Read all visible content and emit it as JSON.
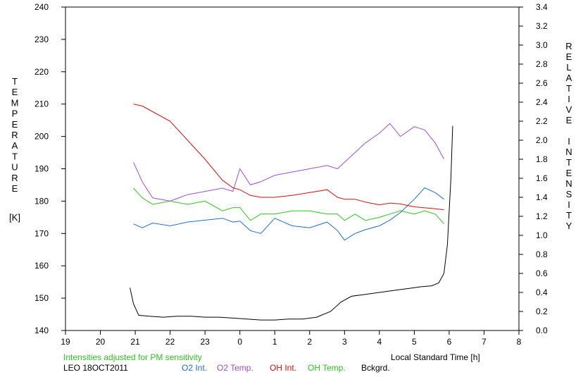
{
  "chart_data": {
    "type": "line",
    "y_left_label": "TEMPERATURE",
    "y_left_unit": "[K]",
    "y_right_label": "RELATIVE INTENSITY",
    "x_label": "Local Standard Time [h]",
    "x_ticks": [
      "19",
      "20",
      "21",
      "22",
      "23",
      "0",
      "1",
      "2",
      "3",
      "4",
      "5",
      "6",
      "7",
      "8"
    ],
    "y_left_ticks": [
      "140",
      "150",
      "160",
      "170",
      "180",
      "190",
      "200",
      "210",
      "220",
      "230",
      "240"
    ],
    "y_right_ticks": [
      "0.0",
      "0.2",
      "0.4",
      "0.6",
      "0.8",
      "1.0",
      "1.2",
      "1.4",
      "1.6",
      "1.8",
      "2.0",
      "2.2",
      "2.4",
      "2.6",
      "2.8",
      "3.0",
      "3.2",
      "3.4"
    ],
    "x_range": [
      19,
      32
    ],
    "y_left_range": [
      140,
      240
    ],
    "y_right_range": [
      0,
      3.4
    ],
    "grid": false,
    "series": [
      {
        "name": "O2 Int.",
        "axis": "right",
        "color": "#1f6fd8",
        "x": [
          20.95,
          21.2,
          21.5,
          22.0,
          22.5,
          23.0,
          23.5,
          23.8,
          24.0,
          24.3,
          24.6,
          25.0,
          25.5,
          26.0,
          26.5,
          26.8,
          27.0,
          27.3,
          27.6,
          28.0,
          28.3,
          28.6,
          29.0,
          29.3,
          29.6,
          29.85
        ],
        "y": [
          1.12,
          1.08,
          1.13,
          1.1,
          1.14,
          1.16,
          1.18,
          1.14,
          1.15,
          1.05,
          1.02,
          1.18,
          1.1,
          1.08,
          1.14,
          1.05,
          0.95,
          1.02,
          1.06,
          1.1,
          1.16,
          1.24,
          1.38,
          1.5,
          1.45,
          1.38
        ]
      },
      {
        "name": "O2 Temp.",
        "axis": "left",
        "color": "#a04fd6",
        "x": [
          20.95,
          21.2,
          21.5,
          22.0,
          22.5,
          23.0,
          23.5,
          23.8,
          24.0,
          24.3,
          24.6,
          25.0,
          25.5,
          26.0,
          26.5,
          26.8,
          27.0,
          27.3,
          27.6,
          28.0,
          28.3,
          28.6,
          29.0,
          29.3,
          29.6,
          29.85
        ],
        "y": [
          192,
          186,
          181,
          180,
          182,
          183,
          184,
          183,
          190,
          185,
          186,
          188,
          189,
          190,
          191,
          190,
          192,
          195,
          198,
          201,
          204,
          200,
          203,
          202,
          198,
          193
        ]
      },
      {
        "name": "OH Int.",
        "axis": "right",
        "color": "#d81010",
        "x": [
          20.95,
          21.2,
          21.5,
          22.0,
          22.5,
          23.0,
          23.5,
          23.8,
          24.0,
          24.3,
          24.6,
          25.0,
          25.5,
          26.0,
          26.5,
          26.8,
          27.0,
          27.3,
          27.6,
          28.0,
          28.3,
          28.6,
          29.0,
          29.3,
          29.6,
          29.85
        ],
        "y": [
          2.38,
          2.36,
          2.3,
          2.2,
          2.0,
          1.8,
          1.58,
          1.5,
          1.48,
          1.42,
          1.4,
          1.4,
          1.42,
          1.45,
          1.48,
          1.4,
          1.38,
          1.38,
          1.35,
          1.32,
          1.34,
          1.33,
          1.3,
          1.29,
          1.28,
          1.27
        ]
      },
      {
        "name": "OH Temp.",
        "axis": "left",
        "color": "#2ec41f",
        "x": [
          20.95,
          21.2,
          21.5,
          22.0,
          22.5,
          23.0,
          23.5,
          23.8,
          24.0,
          24.3,
          24.6,
          25.0,
          25.5,
          26.0,
          26.5,
          26.8,
          27.0,
          27.3,
          27.6,
          28.0,
          28.3,
          28.6,
          29.0,
          29.3,
          29.6,
          29.85
        ],
        "y": [
          184,
          181,
          179,
          180,
          179,
          180,
          177,
          178,
          178,
          174,
          176,
          176,
          177,
          177,
          176,
          176,
          174,
          176,
          174,
          175,
          176,
          177,
          176,
          177,
          176,
          173
        ]
      },
      {
        "name": "Bckgrd.",
        "axis": "right",
        "color": "#000000",
        "x": [
          20.85,
          20.95,
          21.1,
          21.4,
          21.8,
          22.2,
          22.6,
          23.0,
          23.4,
          23.8,
          24.2,
          24.6,
          25.0,
          25.4,
          25.8,
          26.2,
          26.6,
          26.9,
          27.2,
          27.6,
          28.0,
          28.4,
          28.8,
          29.2,
          29.5,
          29.7,
          29.85,
          29.95,
          30.05,
          30.1
        ],
        "y": [
          0.45,
          0.28,
          0.16,
          0.15,
          0.14,
          0.15,
          0.15,
          0.14,
          0.14,
          0.13,
          0.12,
          0.11,
          0.11,
          0.12,
          0.12,
          0.14,
          0.2,
          0.3,
          0.36,
          0.38,
          0.4,
          0.42,
          0.44,
          0.46,
          0.47,
          0.5,
          0.6,
          0.9,
          1.6,
          2.15
        ]
      }
    ]
  },
  "annotations": {
    "note": "Intensities adjusted for PM sensitivity",
    "station": "LEO 18OCT2011"
  },
  "legend": [
    {
      "label": "O2 Int.",
      "color": "#1f6fd8"
    },
    {
      "label": "O2 Temp.",
      "color": "#a04fd6"
    },
    {
      "label": "OH Int.",
      "color": "#d81010"
    },
    {
      "label": "OH Temp.",
      "color": "#2ec41f"
    },
    {
      "label": "Bckgrd.",
      "color": "#000000"
    }
  ]
}
